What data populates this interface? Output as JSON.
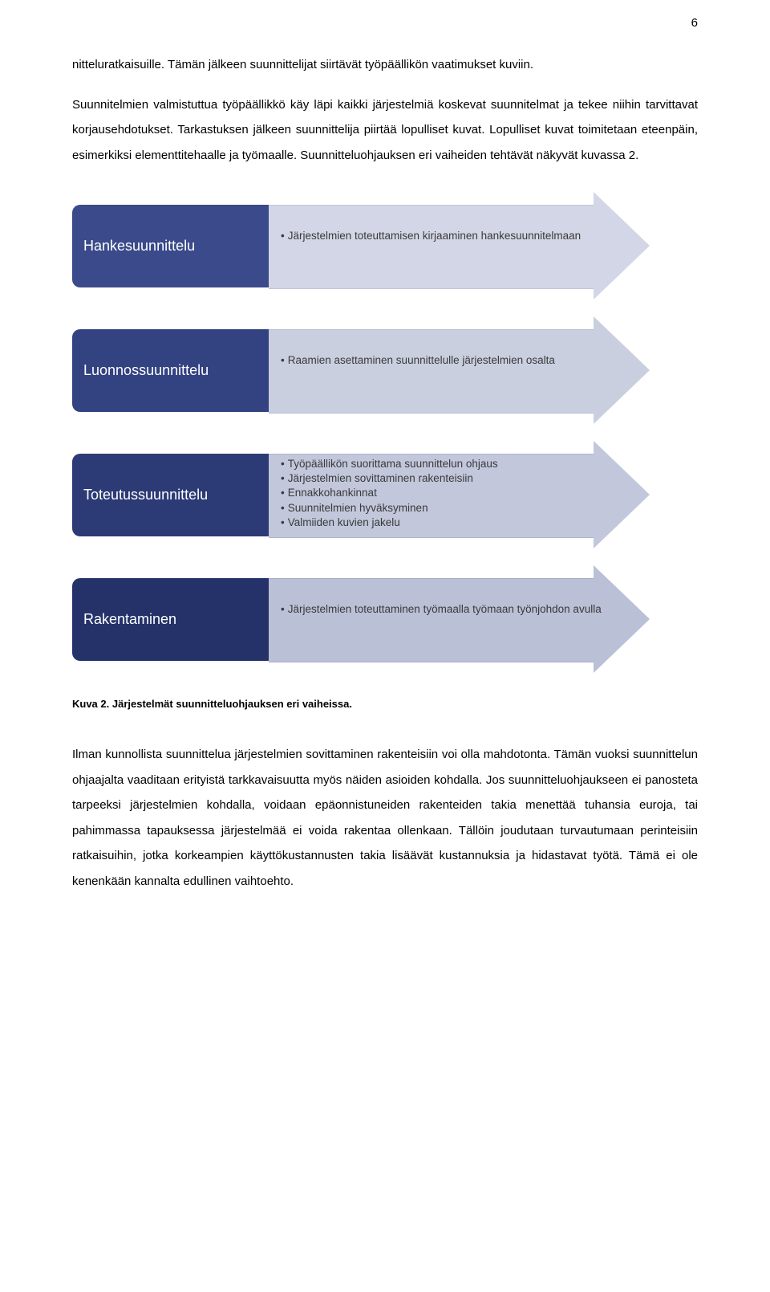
{
  "page_number": "6",
  "paragraphs": {
    "p1": "nitteluratkaisuille. Tämän jälkeen suunnittelijat siirtävät työpäällikön vaatimukset kuviin.",
    "p2": "Suunnitelmien valmistuttua työpäällikkö käy läpi kaikki järjestelmiä koskevat suunnitelmat ja tekee niihin tarvittavat korjausehdotukset. Tarkastuksen jälkeen suunnittelija piirtää lopulliset kuvat. Lopulliset kuvat toimitetaan eteenpäin, esimerkiksi elementtitehaalle ja työmaalle. Suunnitteluohjauksen eri vaiheiden tehtävät näkyvät kuvassa 2.",
    "p3": "Ilman kunnollista suunnittelua järjestelmien sovittaminen rakenteisiin voi olla mahdotonta. Tämän vuoksi suunnittelun ohjaajalta vaaditaan erityistä tarkkavaisuutta myös näiden asioiden kohdalla. Jos suunnitteluohjaukseen ei panosteta tarpeeksi järjestelmien kohdalla, voidaan epäonnistuneiden rakenteiden takia menettää tuhansia euroja, tai pahimmassa tapauksessa järjestelmää ei voida rakentaa ollenkaan. Tällöin joudutaan turvautumaan perinteisiin ratkaisuihin, jotka korkeampien käyttökustannusten takia lisäävät kustannuksia ja hidastavat työtä. Tämä ei ole kenenkään kannalta edullinen vaihtoehto."
  },
  "caption": "Kuva 2. Järjestelmät suunnitteluohjauksen eri vaiheissa.",
  "diagram": {
    "type": "infographic",
    "rows": [
      {
        "label": "Hankesuunnittelu",
        "label_bg": "#3a4a8a",
        "arrow_bg": "#d2d6e6",
        "arrow_border": "#bfc4da",
        "bullets": [
          "Järjestelmien toteuttamisen kirjaaminen hankesuunnitelmaan"
        ]
      },
      {
        "label": "Luonnossuunnittelu",
        "label_bg": "#334280",
        "arrow_bg": "#cacfe0",
        "arrow_border": "#b6bcd3",
        "bullets": [
          "Raamien asettaminen suunnittelulle järjestelmien osalta"
        ]
      },
      {
        "label": "Toteutussuunnittelu",
        "label_bg": "#2c3a75",
        "arrow_bg": "#c2c7db",
        "arrow_border": "#aeb5cd",
        "bullets": [
          "Työpäällikön suorittama suunnittelun ohjaus",
          "Järjestelmien sovittaminen rakenteisiin",
          "Ennakkohankinnat",
          "Suunnitelmien hyväksyminen",
          "Valmiiden kuvien jakelu"
        ]
      },
      {
        "label": "Rakentaminen",
        "label_bg": "#25326a",
        "arrow_bg": "#bac0d6",
        "arrow_border": "#a6adc7",
        "bullets": [
          "Järjestelmien toteuttaminen työmaalla työmaan työnjohdon avulla"
        ]
      }
    ]
  }
}
